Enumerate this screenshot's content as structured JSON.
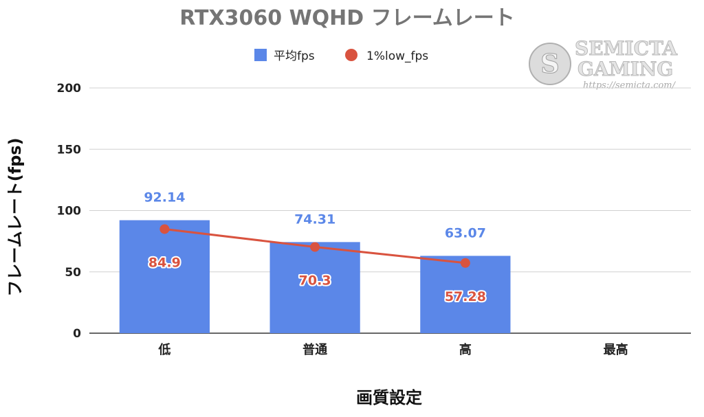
{
  "chart_data": {
    "type": "bar",
    "title": "RTX3060 WQHD フレームレート",
    "xlabel": "画質設定",
    "ylabel": "フレームレート(fps)",
    "ylim": [
      0,
      200
    ],
    "yticks": [
      0,
      50,
      100,
      150,
      200
    ],
    "grid": true,
    "legend_position": "top",
    "categories": [
      "低",
      "普通",
      "高",
      "最高"
    ],
    "series": [
      {
        "name": "平均fps",
        "type": "bar",
        "color": "#5b87e8",
        "values": [
          92.14,
          74.31,
          63.07,
          null
        ],
        "labels": [
          "92.14",
          "74.31",
          "63.07",
          ""
        ]
      },
      {
        "name": "1%low_fps",
        "type": "line",
        "color": "#d9533f",
        "values": [
          84.9,
          70.3,
          57.28,
          null
        ],
        "labels": [
          "84.9",
          "70.3",
          "57.28",
          ""
        ]
      }
    ]
  },
  "watermark": {
    "line1": "SEMICTA",
    "line2": "GAMING",
    "url": "https://semicta.com/"
  }
}
